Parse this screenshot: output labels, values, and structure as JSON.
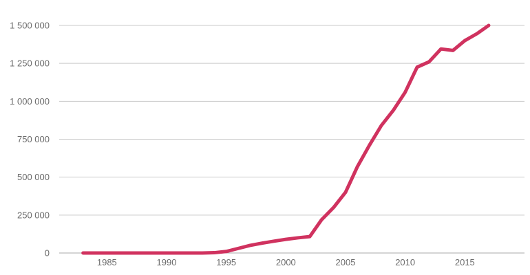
{
  "chart_data": {
    "type": "line",
    "title": "",
    "xlabel": "",
    "ylabel": "",
    "xlim": [
      1981,
      2020
    ],
    "ylim": [
      0,
      1500000
    ],
    "grid": true,
    "legend": "none",
    "colors": {
      "line": "#d0325f",
      "grid": "#c9c9c9",
      "text": "#6b6b6b"
    },
    "y_ticks": [
      {
        "value": 0,
        "label": "0"
      },
      {
        "value": 250000,
        "label": "250 000"
      },
      {
        "value": 500000,
        "label": "500 000"
      },
      {
        "value": 750000,
        "label": "750 000"
      },
      {
        "value": 1000000,
        "label": "1 000 000"
      },
      {
        "value": 1250000,
        "label": "1 250 000"
      },
      {
        "value": 1500000,
        "label": "1 500 000"
      }
    ],
    "x_ticks": [
      {
        "value": 1985,
        "label": "1985"
      },
      {
        "value": 1990,
        "label": "1990"
      },
      {
        "value": 1995,
        "label": "1995"
      },
      {
        "value": 2000,
        "label": "2000"
      },
      {
        "value": 2005,
        "label": "2005"
      },
      {
        "value": 2010,
        "label": "2010"
      },
      {
        "value": 2015,
        "label": "2015"
      }
    ],
    "series": [
      {
        "x": [
          1983,
          1984,
          1985,
          1986,
          1987,
          1988,
          1989,
          1990,
          1991,
          1992,
          1993,
          1994,
          1995,
          1996,
          1997,
          1998,
          1999,
          2000,
          2001,
          2002,
          2003,
          2004,
          2005,
          2006,
          2007,
          2008,
          2009,
          2010,
          2011,
          2012,
          2013,
          2014,
          2015,
          2016,
          2017
        ],
        "values": [
          0,
          0,
          0,
          0,
          0,
          0,
          0,
          0,
          0,
          0,
          0,
          2000,
          10000,
          30000,
          50000,
          65000,
          78000,
          90000,
          100000,
          108000,
          220000,
          300000,
          400000,
          570000,
          710000,
          840000,
          940000,
          1060000,
          1225000,
          1260000,
          1345000,
          1335000,
          1400000,
          1445000,
          1500000
        ]
      }
    ]
  }
}
